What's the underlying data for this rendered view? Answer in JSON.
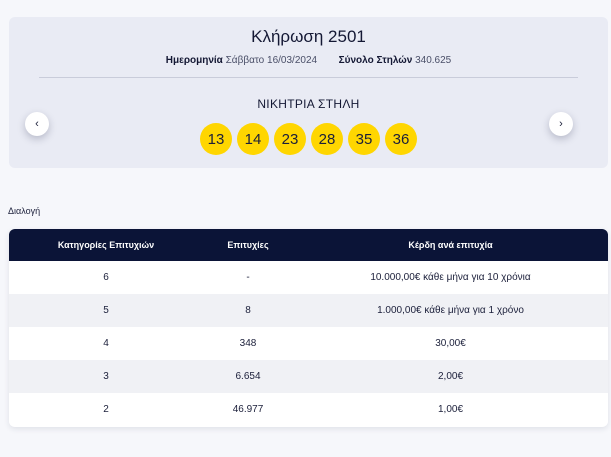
{
  "draw": {
    "title": "Κλήρωση 2501",
    "date_label": "Ημερομηνία",
    "date_value": "Σάββατο 16/03/2024",
    "columns_label": "Σύνολο Στηλών",
    "columns_value": "340.625",
    "winning_label": "ΝΙΚΗΤΡΙΑ ΣΤΗΛΗ",
    "numbers": [
      "13",
      "14",
      "23",
      "28",
      "35",
      "36"
    ],
    "ball_color": "#ffd600",
    "prev_icon": "‹",
    "next_icon": "›"
  },
  "breadcrumb": "Διαλογή",
  "table": {
    "headers": [
      "Κατηγορίες Επιτυχιών",
      "Επιτυχίες",
      "Κέρδη ανά επιτυχία"
    ],
    "rows": [
      [
        "6",
        "-",
        "10.000,00€ κάθε μήνα για 10 χρόνια"
      ],
      [
        "5",
        "8",
        "1.000,00€ κάθε μήνα για 1 χρόνο"
      ],
      [
        "4",
        "348",
        "30,00€"
      ],
      [
        "3",
        "6.654",
        "2,00€"
      ],
      [
        "2",
        "46.977",
        "1,00€"
      ]
    ],
    "header_color": "#0b1437"
  }
}
